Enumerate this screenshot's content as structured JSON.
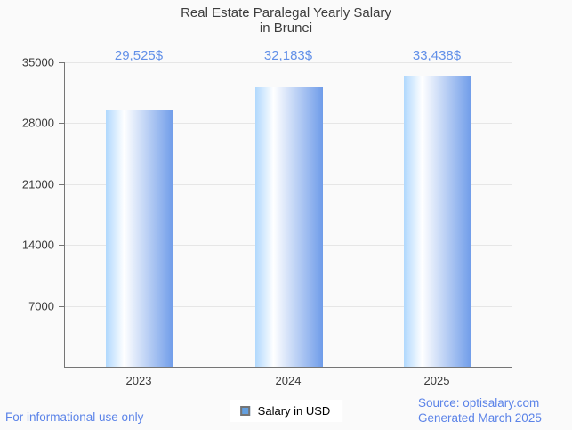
{
  "chart_data": {
    "type": "bar",
    "title": "Real Estate Paralegal Yearly Salary in Brunei",
    "title_lines": [
      "Real Estate Paralegal Yearly Salary",
      "in Brunei"
    ],
    "categories": [
      "2023",
      "2024",
      "2025"
    ],
    "values": [
      29525,
      32183,
      33438
    ],
    "value_labels": [
      "29,525$",
      "32,183$",
      "33,438$"
    ],
    "xlabel": "",
    "ylabel": "",
    "ylim": [
      0,
      35000
    ],
    "yticks": [
      35000,
      28000,
      21000,
      14000,
      7000
    ],
    "ytick_labels": [
      "35000",
      "28000",
      "21000",
      "14000",
      "7000"
    ],
    "grid": true,
    "legend": {
      "label": "Salary in USD",
      "position": "bottom-center"
    }
  },
  "footer": {
    "disclaimer": "For informational use only",
    "source": "Source: optisalary.com",
    "generated": "Generated March 2025"
  },
  "colors": {
    "background": "#fafafa",
    "title_text": "#3d3d3d",
    "value_label_text": "#6290e8",
    "axis_line": "#757575",
    "gridline": "#e6e6e6",
    "tick_label_text": "#3a3a3a",
    "footer_text": "#5b83e8",
    "bar_gradient_start": "#b0d8fd",
    "bar_gradient_mid": "#ffffff",
    "bar_gradient_end": "#6f9ce9",
    "legend_marker_fill": "#64a0e0",
    "legend_marker_border": "#757575",
    "legend_text": "#000000"
  }
}
